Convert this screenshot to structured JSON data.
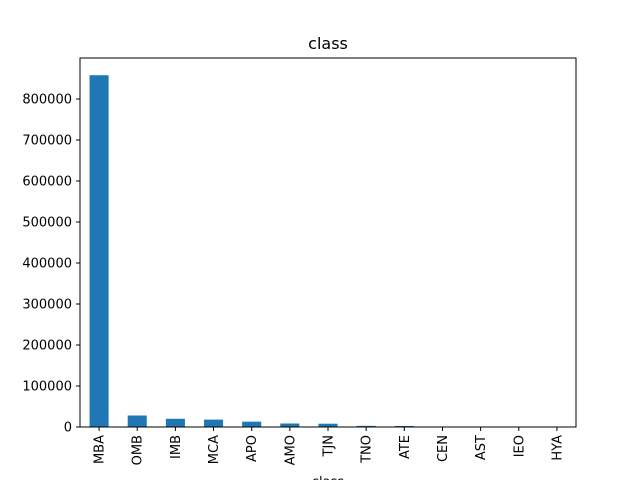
{
  "chart_data": {
    "type": "bar",
    "title": "class",
    "xlabel": "class",
    "ylabel": "",
    "categories": [
      "MBA",
      "OMB",
      "IMB",
      "MCA",
      "APO",
      "AMO",
      "TJN",
      "TNO",
      "ATE",
      "CEN",
      "AST",
      "IEO",
      "HYA"
    ],
    "values": [
      858000,
      28000,
      20000,
      18000,
      13000,
      8500,
      8000,
      2800,
      2500,
      500,
      300,
      300,
      200
    ],
    "ylim": [
      0,
      900000
    ],
    "yticks": [
      0,
      100000,
      200000,
      300000,
      400000,
      500000,
      600000,
      700000,
      800000
    ],
    "ytick_labels": [
      "0",
      "100000",
      "200000",
      "300000",
      "400000",
      "500000",
      "600000",
      "700000",
      "800000"
    ],
    "grid": false,
    "bar_color": "#1f77b4"
  }
}
